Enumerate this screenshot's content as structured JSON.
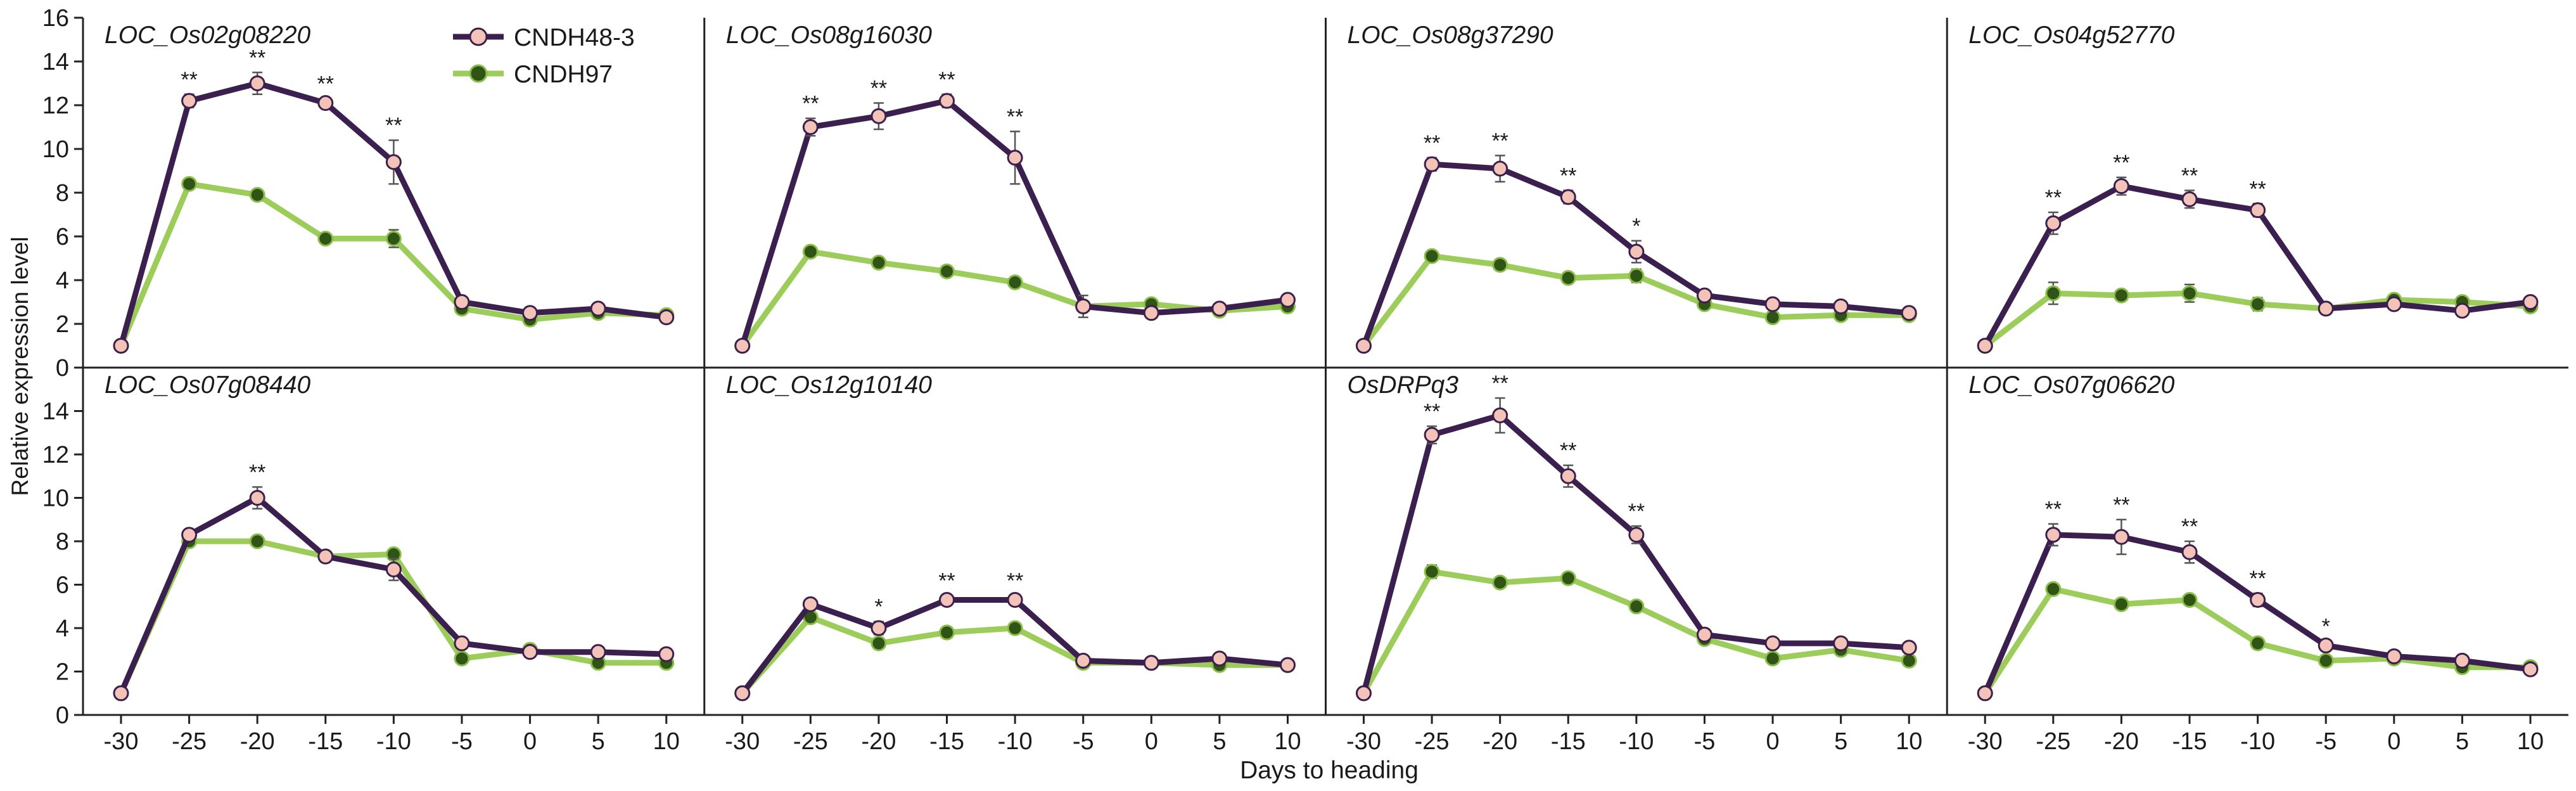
{
  "chart_data": {
    "type": "line",
    "ylabel": "Relative expression level",
    "xlabel": "Days to heading",
    "x": [
      -30,
      -25,
      -20,
      -15,
      -10,
      -5,
      0,
      5,
      10
    ],
    "xtick_labels": [
      "-30",
      "-25",
      "-20",
      "-15",
      "-10",
      "-5",
      "0",
      "5",
      "10"
    ],
    "ylim": [
      0,
      16
    ],
    "yticks": [
      0,
      2,
      4,
      6,
      8,
      10,
      12,
      14,
      16
    ],
    "legend": {
      "placement": "top-left, first panel",
      "entries": [
        {
          "name": "CNDH48-3",
          "line_color": "#3b1f4f",
          "marker_color": "#f4c3b8"
        },
        {
          "name": "CNDH97",
          "line_color": "#9ccc5a",
          "marker_color": "#2f5416"
        }
      ]
    },
    "panels": [
      {
        "title": "LOC_Os02g08220",
        "series": [
          {
            "name": "CNDH48-3",
            "values": [
              1.0,
              12.2,
              13.0,
              12.1,
              9.4,
              3.0,
              2.5,
              2.7,
              2.3
            ],
            "errors": [
              0,
              0.3,
              0.5,
              0.2,
              1.0,
              0.2,
              0.2,
              0.2,
              0.2
            ]
          },
          {
            "name": "CNDH97",
            "values": [
              1.0,
              8.4,
              7.9,
              5.9,
              5.9,
              2.7,
              2.2,
              2.5,
              2.4
            ],
            "errors": [
              0,
              0.1,
              0.2,
              0.2,
              0.4,
              0.2,
              0.2,
              0.2,
              0.1
            ]
          }
        ],
        "significance": [
          "",
          "**",
          "**",
          "**",
          "**",
          "",
          "",
          "",
          ""
        ]
      },
      {
        "title": "LOC_Os08g16030",
        "series": [
          {
            "name": "CNDH48-3",
            "values": [
              1.0,
              11.0,
              11.5,
              12.2,
              9.6,
              2.8,
              2.5,
              2.7,
              3.1
            ],
            "errors": [
              0,
              0.4,
              0.6,
              0.3,
              1.2,
              0.5,
              0.2,
              0.2,
              0.2
            ]
          },
          {
            "name": "CNDH97",
            "values": [
              1.0,
              5.3,
              4.8,
              4.4,
              3.9,
              2.8,
              2.9,
              2.6,
              2.8
            ],
            "errors": [
              0,
              0.1,
              0.1,
              0.1,
              0.2,
              0.2,
              0.2,
              0.2,
              0.2
            ]
          }
        ],
        "significance": [
          "",
          "**",
          "**",
          "**",
          "**",
          "",
          "",
          "",
          ""
        ]
      },
      {
        "title": "LOC_Os08g37290",
        "series": [
          {
            "name": "CNDH48-3",
            "values": [
              1.0,
              9.3,
              9.1,
              7.8,
              5.3,
              3.3,
              2.9,
              2.8,
              2.5
            ],
            "errors": [
              0,
              0.3,
              0.6,
              0.3,
              0.5,
              0.2,
              0.2,
              0.2,
              0.2
            ]
          },
          {
            "name": "CNDH97",
            "values": [
              1.0,
              5.1,
              4.7,
              4.1,
              4.2,
              2.9,
              2.3,
              2.4,
              2.4
            ],
            "errors": [
              0,
              0.2,
              0.1,
              0.2,
              0.3,
              0.2,
              0.2,
              0.2,
              0.1
            ]
          }
        ],
        "significance": [
          "",
          "**",
          "**",
          "**",
          "*",
          "",
          "",
          "",
          ""
        ]
      },
      {
        "title": "LOC_Os04g52770",
        "series": [
          {
            "name": "CNDH48-3",
            "values": [
              1.0,
              6.6,
              8.3,
              7.7,
              7.2,
              2.7,
              2.9,
              2.6,
              3.0
            ],
            "errors": [
              0,
              0.5,
              0.4,
              0.4,
              0.3,
              0.2,
              0.2,
              0.2,
              0.2
            ]
          },
          {
            "name": "CNDH97",
            "values": [
              1.0,
              3.4,
              3.3,
              3.4,
              2.9,
              2.7,
              3.1,
              3.0,
              2.8
            ],
            "errors": [
              0,
              0.5,
              0.2,
              0.4,
              0.3,
              0.2,
              0.2,
              0.2,
              0.2
            ]
          }
        ],
        "significance": [
          "",
          "**",
          "**",
          "**",
          "**",
          "",
          "",
          "",
          ""
        ]
      },
      {
        "title": "LOC_Os07g08440",
        "series": [
          {
            "name": "CNDH48-3",
            "values": [
              1.0,
              8.3,
              10.0,
              7.3,
              6.7,
              3.3,
              2.9,
              2.9,
              2.8
            ],
            "errors": [
              0,
              0.2,
              0.5,
              0.2,
              0.5,
              0.2,
              0.2,
              0.2,
              0.2
            ]
          },
          {
            "name": "CNDH97",
            "values": [
              1.0,
              8.0,
              8.0,
              7.3,
              7.4,
              2.6,
              3.0,
              2.4,
              2.4
            ],
            "errors": [
              0,
              0.2,
              0.2,
              0.2,
              0.2,
              0.2,
              0.2,
              0.2,
              0.1
            ]
          }
        ],
        "significance": [
          "",
          "",
          "**",
          "",
          "",
          "",
          "",
          "",
          ""
        ]
      },
      {
        "title": "LOC_Os12g10140",
        "series": [
          {
            "name": "CNDH48-3",
            "values": [
              1.0,
              5.1,
              4.0,
              5.3,
              5.3,
              2.5,
              2.4,
              2.6,
              2.3
            ],
            "errors": [
              0,
              0.2,
              0.3,
              0.2,
              0.2,
              0.1,
              0.1,
              0.1,
              0.1
            ]
          },
          {
            "name": "CNDH97",
            "values": [
              1.0,
              4.5,
              3.3,
              3.8,
              4.0,
              2.4,
              2.4,
              2.3,
              2.3
            ],
            "errors": [
              0,
              0.2,
              0.1,
              0.1,
              0.1,
              0.1,
              0.1,
              0.1,
              0.1
            ]
          }
        ],
        "significance": [
          "",
          "",
          "*",
          "**",
          "**",
          "",
          "",
          "",
          ""
        ]
      },
      {
        "title": "OsDRPq3",
        "series": [
          {
            "name": "CNDH48-3",
            "values": [
              1.0,
              12.9,
              13.8,
              11.0,
              8.3,
              3.7,
              3.3,
              3.3,
              3.1
            ],
            "errors": [
              0,
              0.4,
              0.8,
              0.5,
              0.4,
              0.2,
              0.2,
              0.2,
              0.2
            ]
          },
          {
            "name": "CNDH97",
            "values": [
              1.0,
              6.6,
              6.1,
              6.3,
              5.0,
              3.5,
              2.6,
              3.0,
              2.5
            ],
            "errors": [
              0,
              0.3,
              0.2,
              0.2,
              0.2,
              0.2,
              0.2,
              0.2,
              0.2
            ]
          }
        ],
        "significance": [
          "",
          "**",
          "**",
          "**",
          "**",
          "",
          "",
          "",
          ""
        ]
      },
      {
        "title": "LOC_Os07g06620",
        "series": [
          {
            "name": "CNDH48-3",
            "values": [
              1.0,
              8.3,
              8.2,
              7.5,
              5.3,
              3.2,
              2.7,
              2.5,
              2.1
            ],
            "errors": [
              0,
              0.5,
              0.8,
              0.5,
              0.3,
              0.2,
              0.2,
              0.2,
              0.2
            ]
          },
          {
            "name": "CNDH97",
            "values": [
              1.0,
              5.8,
              5.1,
              5.3,
              3.3,
              2.5,
              2.6,
              2.2,
              2.2
            ],
            "errors": [
              0,
              0.2,
              0.2,
              0.2,
              0.2,
              0.2,
              0.2,
              0.2,
              0.2
            ]
          }
        ],
        "significance": [
          "",
          "**",
          "**",
          "**",
          "**",
          "*",
          "",
          "",
          ""
        ]
      }
    ]
  }
}
